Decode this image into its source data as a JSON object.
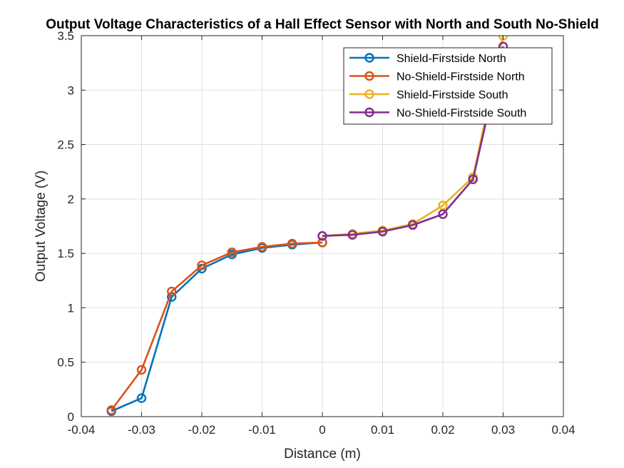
{
  "chart_data": {
    "type": "line",
    "title": "Output Voltage Characteristics of a Hall Effect Sensor with North and South No-Shield",
    "xlabel": "Distance (m)",
    "ylabel": "Output Voltage (V)",
    "xlim": [
      -0.04,
      0.04
    ],
    "ylim": [
      0,
      3.5
    ],
    "xticks": [
      -0.04,
      -0.03,
      -0.02,
      -0.01,
      0,
      0.01,
      0.02,
      0.03,
      0.04
    ],
    "xtick_labels": [
      "-0.04",
      "-0.03",
      "-0.02",
      "-0.01",
      "0",
      "0.01",
      "0.02",
      "0.03",
      "0.04"
    ],
    "yticks": [
      0,
      0.5,
      1,
      1.5,
      2,
      2.5,
      3,
      3.5
    ],
    "ytick_labels": [
      "0",
      "0.5",
      "1",
      "1.5",
      "2",
      "2.5",
      "3",
      "3.5"
    ],
    "grid": true,
    "legend_position": "top-right",
    "series": [
      {
        "name": "Shield-Firstside North",
        "color": "#0072BD",
        "x": [
          -0.035,
          -0.03,
          -0.025,
          -0.02,
          -0.015,
          -0.01,
          -0.005,
          0
        ],
        "y": [
          0.05,
          0.17,
          1.1,
          1.36,
          1.49,
          1.55,
          1.58,
          1.6
        ]
      },
      {
        "name": "No-Shield-Firstside North",
        "color": "#D95319",
        "x": [
          -0.035,
          -0.03,
          -0.025,
          -0.02,
          -0.015,
          -0.01,
          -0.005,
          0
        ],
        "y": [
          0.06,
          0.43,
          1.15,
          1.39,
          1.51,
          1.56,
          1.59,
          1.6
        ]
      },
      {
        "name": "Shield-Firstside South",
        "color": "#EDB120",
        "x": [
          0,
          0.005,
          0.01,
          0.015,
          0.02,
          0.025,
          0.03
        ],
        "y": [
          1.66,
          1.68,
          1.71,
          1.77,
          1.94,
          2.2,
          3.5
        ]
      },
      {
        "name": "No-Shield-Firstside South",
        "color": "#7E2F8E",
        "x": [
          0,
          0.005,
          0.01,
          0.015,
          0.02,
          0.025,
          0.03
        ],
        "y": [
          1.66,
          1.67,
          1.7,
          1.76,
          1.86,
          2.18,
          3.4
        ]
      }
    ]
  }
}
